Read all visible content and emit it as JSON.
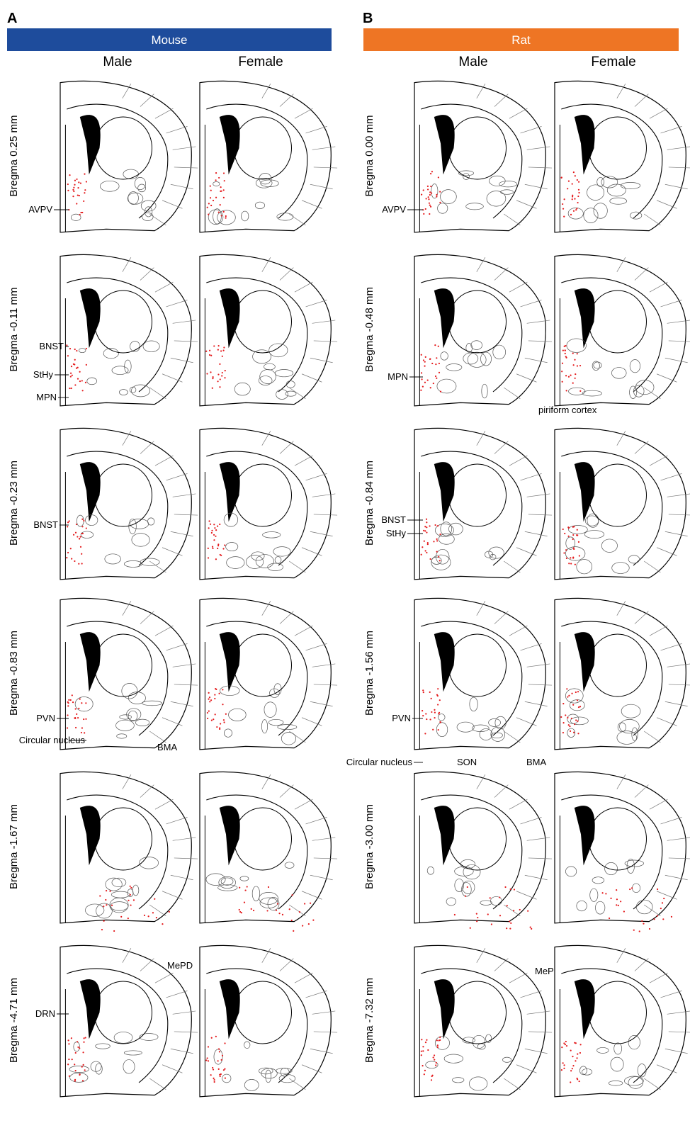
{
  "panels": [
    {
      "label": "A",
      "species": "Mouse",
      "columns": [
        "Male",
        "Female"
      ],
      "rows": [
        {
          "bregma": "Bregma 0.25 mm",
          "regions": [
            "AVPV"
          ]
        },
        {
          "bregma": "Bregma -0.11 mm",
          "regions": [
            "BNST",
            "StHy",
            "MPN"
          ]
        },
        {
          "bregma": "Bregma -0.23 mm",
          "regions": [
            "BNST"
          ]
        },
        {
          "bregma": "Bregma -0.83 mm",
          "regions": [
            "PVN",
            "Circular nucleus",
            "BMA"
          ]
        },
        {
          "bregma": "Bregma -1.67 mm",
          "regions": [
            "MePD"
          ]
        },
        {
          "bregma": "Bregma -4.71 mm",
          "regions": [
            "DRN"
          ]
        }
      ]
    },
    {
      "label": "B",
      "species": "Rat",
      "columns": [
        "Male",
        "Female"
      ],
      "rows": [
        {
          "bregma": "Bregma 0.00 mm",
          "regions": [
            "AVPV"
          ]
        },
        {
          "bregma": "Bregma -0.48 mm",
          "regions": [
            "MPN",
            "piriform cortex"
          ]
        },
        {
          "bregma": "Bregma -0.84 mm",
          "regions": [
            "BNST",
            "StHy"
          ]
        },
        {
          "bregma": "Bregma -1.56 mm",
          "regions": [
            "PVN",
            "Circular nucleus",
            "SON",
            "BMA"
          ]
        },
        {
          "bregma": "Bregma -3.00 mm",
          "regions": [
            "MePD"
          ]
        },
        {
          "bregma": "Bregma -7.32 mm",
          "regions": []
        }
      ]
    }
  ]
}
